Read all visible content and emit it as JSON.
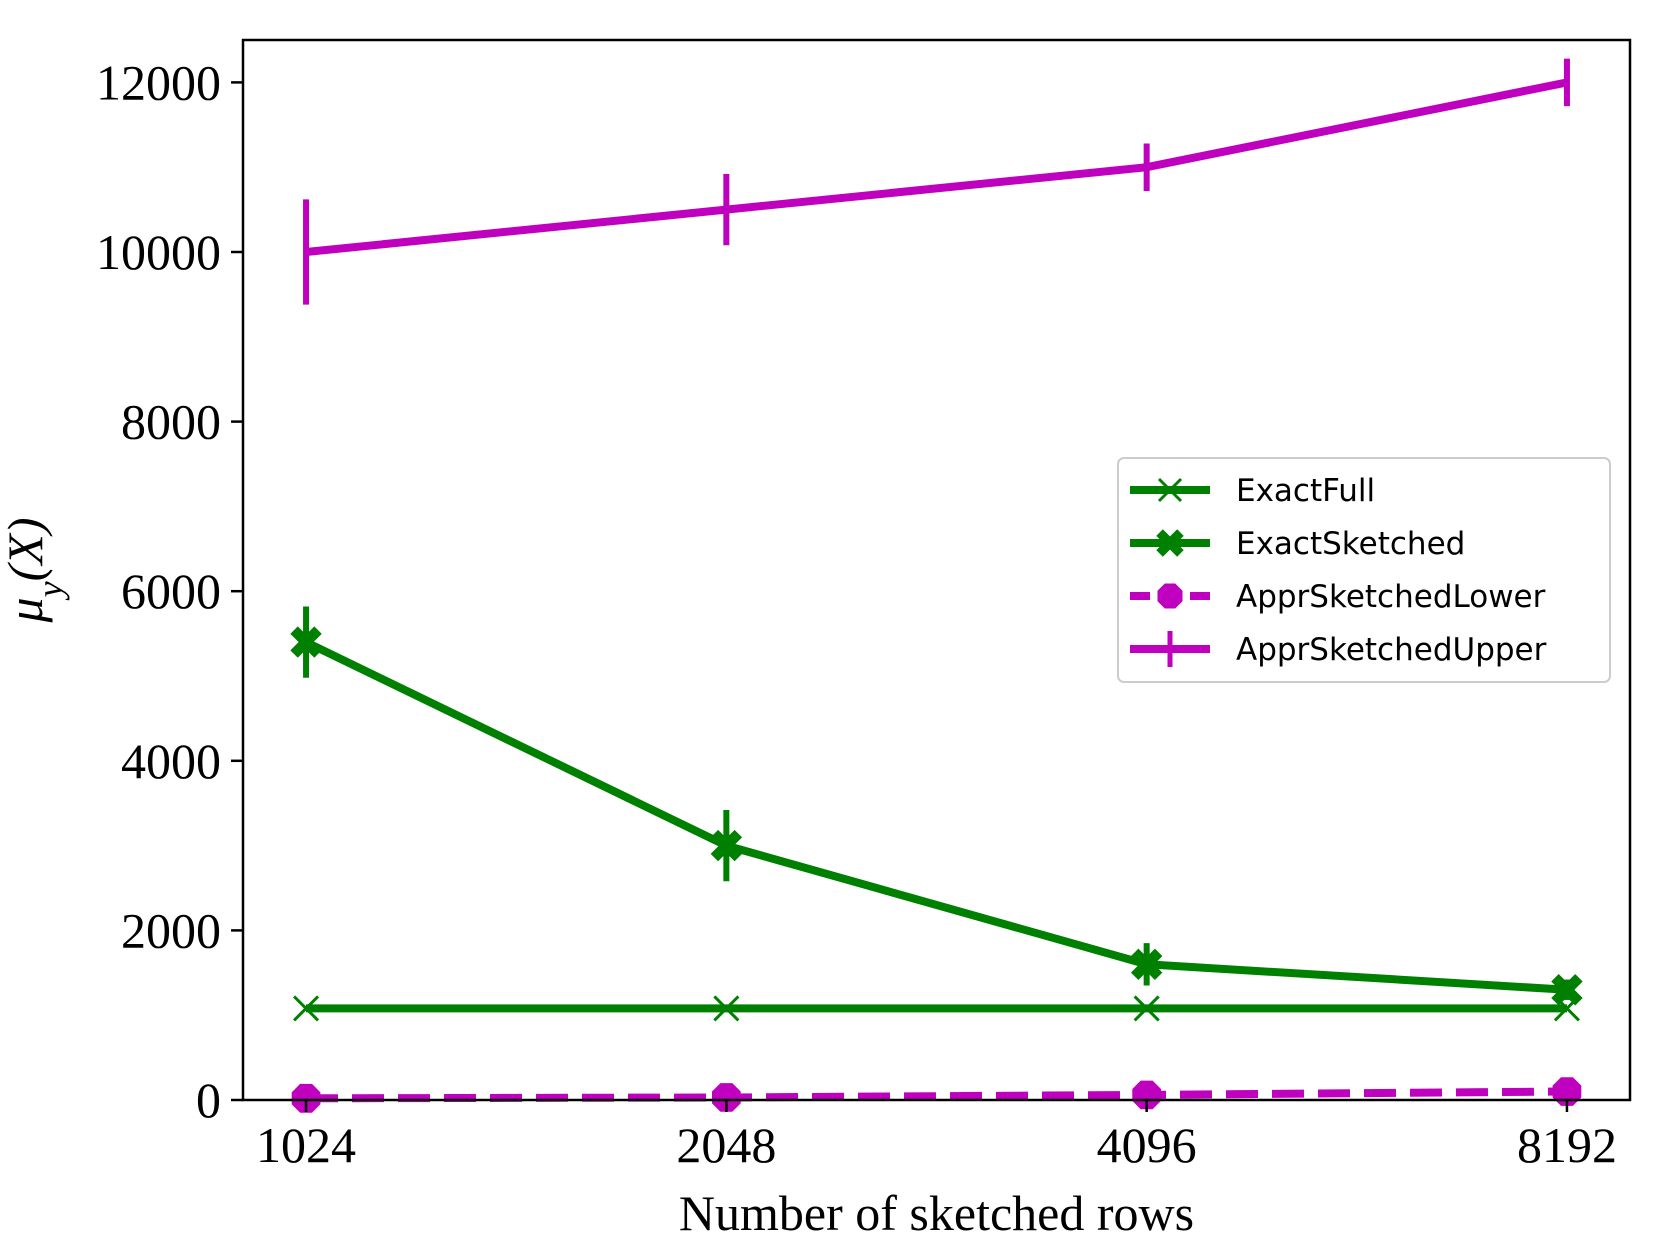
{
  "chart_data": {
    "type": "line",
    "title": "",
    "xlabel": "Number of sketched rows",
    "ylabel": "μy(X)",
    "x": [
      1024,
      2048,
      4096,
      8192
    ],
    "x_tick_labels": [
      "1024",
      "2048",
      "4096",
      "8192"
    ],
    "x_scale": "log2",
    "y_ticks": [
      0,
      2000,
      4000,
      6000,
      8000,
      10000,
      12000
    ],
    "y_tick_labels": [
      "0",
      "2000",
      "4000",
      "6000",
      "8000",
      "10000",
      "12000"
    ],
    "ylim": [
      0,
      12500
    ],
    "grid": false,
    "legend_position": "center-right",
    "series": [
      {
        "name": "ExactFull",
        "values": [
          1080,
          1080,
          1080,
          1080
        ],
        "errors": [
          0,
          0,
          0,
          0
        ],
        "color": "#008000",
        "marker": "x",
        "linestyle": "solid"
      },
      {
        "name": "ExactSketched",
        "values": [
          5400,
          3000,
          1600,
          1300
        ],
        "errors": [
          420,
          420,
          250,
          120
        ],
        "color": "#008000",
        "marker": "filled-x",
        "linestyle": "solid"
      },
      {
        "name": "ApprSketchedLower",
        "values": [
          20,
          30,
          60,
          100
        ],
        "errors": [
          0,
          0,
          0,
          0
        ],
        "color": "#bf00bf",
        "marker": "octagon",
        "linestyle": "dashed"
      },
      {
        "name": "ApprSketchedUpper",
        "values": [
          10000,
          10500,
          11000,
          12000
        ],
        "errors": [
          620,
          420,
          280,
          280
        ],
        "color": "#bf00bf",
        "marker": "vline",
        "linestyle": "solid"
      }
    ]
  }
}
